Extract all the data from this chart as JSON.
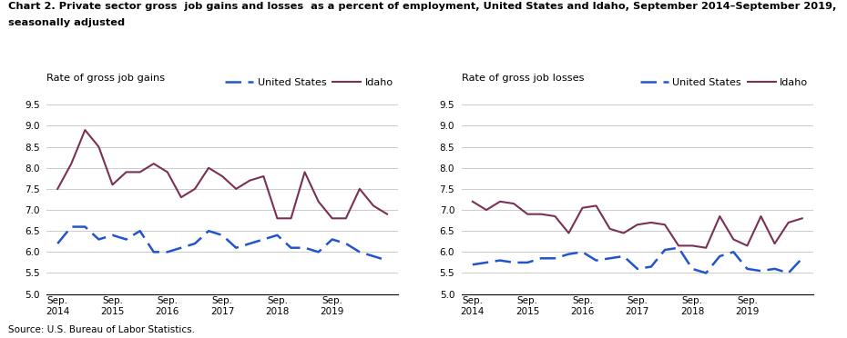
{
  "title_line1": "Chart 2. Private sector gross  job gains and losses  as a percent of employment, United States and Idaho, September 2014–September 2019,",
  "title_line2": "seasonally adjusted",
  "source": "Source: U.S. Bureau of Labor Statistics.",
  "left_ylabel": "Rate of gross job gains",
  "right_ylabel": "Rate of gross job losses",
  "legend_us": "United States",
  "legend_id": "Idaho",
  "x_labels": [
    "Sep.\n2014",
    "Sep.\n2015",
    "Sep.\n2016",
    "Sep.\n2017",
    "Sep.\n2018",
    "Sep.\n2019"
  ],
  "x_positions": [
    0,
    4,
    8,
    12,
    16,
    20
  ],
  "ylim": [
    5.0,
    9.5
  ],
  "yticks": [
    5.0,
    5.5,
    6.0,
    6.5,
    7.0,
    7.5,
    8.0,
    8.5,
    9.0,
    9.5
  ],
  "us_color": "#2255cc",
  "idaho_color": "#7b3055",
  "gains_us": [
    6.2,
    6.6,
    6.6,
    6.3,
    6.4,
    6.3,
    6.5,
    6.0,
    6.0,
    6.1,
    6.2,
    6.5,
    6.4,
    6.1,
    6.2,
    6.3,
    6.4,
    6.1,
    6.1,
    6.0,
    6.3,
    6.2,
    6.0,
    5.9,
    5.8
  ],
  "gains_idaho": [
    7.5,
    8.1,
    8.9,
    8.5,
    7.6,
    7.9,
    7.9,
    8.1,
    7.9,
    7.3,
    7.5,
    8.0,
    7.8,
    7.5,
    7.7,
    7.8,
    6.8,
    6.8,
    7.9,
    7.2,
    6.8,
    6.8,
    7.5,
    7.1,
    6.9
  ],
  "losses_us": [
    5.7,
    5.75,
    5.8,
    5.75,
    5.75,
    5.85,
    5.85,
    5.95,
    6.0,
    5.8,
    5.85,
    5.9,
    5.6,
    5.65,
    6.05,
    6.1,
    5.6,
    5.5,
    5.9,
    6.0,
    5.6,
    5.55,
    5.6,
    5.5,
    5.85
  ],
  "losses_idaho": [
    7.2,
    7.0,
    7.2,
    7.15,
    6.9,
    6.9,
    6.85,
    6.45,
    7.05,
    7.1,
    6.55,
    6.45,
    6.65,
    6.7,
    6.65,
    6.15,
    6.15,
    6.1,
    6.85,
    6.3,
    6.15,
    6.85,
    6.2,
    6.7,
    6.8
  ]
}
